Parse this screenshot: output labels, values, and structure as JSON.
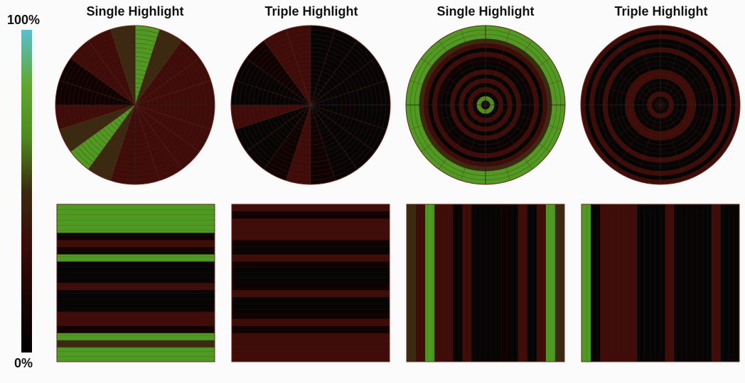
{
  "colorbar": {
    "max_label": "100%",
    "min_label": "0%",
    "stops": [
      "#000000",
      "#1a0503",
      "#3a0c08",
      "#3b2a10",
      "#4e8a1e",
      "#5fa830",
      "#5bbfd0"
    ]
  },
  "panel_titles": [
    "Single Highlight",
    "Triple Highlight",
    "Single Highlight",
    "Triple Highlight"
  ],
  "colors": {
    "black": "#050505",
    "dark": "#0e0302",
    "red": "#3e0d09",
    "brown": "#3b2a12",
    "green": "#4f9a22",
    "line": "#5a1a12"
  },
  "chart_data": [
    {
      "type": "heatmap",
      "title": "Single Highlight",
      "geometry": "polar-sectors",
      "sectors": [
        "green",
        "brown",
        "red",
        "red",
        "red",
        "red",
        "red",
        "red",
        "red",
        "red",
        "red",
        "brown",
        "green",
        "brown",
        "red",
        "dark",
        "dark",
        "red",
        "red",
        "brown"
      ],
      "strips": [
        "green",
        "green",
        "green",
        "green",
        "dark",
        "red",
        "dark",
        "green",
        "black",
        "black",
        "black",
        "red",
        "black",
        "black",
        "black",
        "red",
        "red",
        "dark",
        "green",
        "brown",
        "green",
        "green"
      ]
    },
    {
      "type": "heatmap",
      "title": "Triple Highlight",
      "geometry": "polar-sectors",
      "sectors": [
        "black",
        "black",
        "black",
        "black",
        "black",
        "black",
        "black",
        "black",
        "black",
        "dark",
        "red",
        "dark",
        "black",
        "black",
        "red",
        "black",
        "black",
        "dark",
        "red",
        "red"
      ],
      "strips": [
        "red",
        "dark",
        "red",
        "red",
        "red",
        "dark",
        "black",
        "red",
        "dark",
        "black",
        "black",
        "dark",
        "red",
        "black",
        "black",
        "dark",
        "red",
        "dark",
        "red",
        "red",
        "red",
        "red"
      ]
    },
    {
      "type": "heatmap",
      "title": "Single Highlight",
      "geometry": "polar-rings",
      "rings": [
        "black",
        "green",
        "black",
        "red",
        "black",
        "red",
        "black",
        "red",
        "black",
        "black",
        "dark",
        "red",
        "black",
        "red",
        "brown",
        "green",
        "green",
        "green"
      ],
      "strips": [
        "brown",
        "red",
        "green",
        "red",
        "red",
        "black",
        "red",
        "black",
        "black",
        "black",
        "dark",
        "black",
        "red",
        "black",
        "red",
        "green",
        "brown"
      ]
    },
    {
      "type": "heatmap",
      "title": "Triple Highlight",
      "geometry": "polar-rings",
      "rings": [
        "black",
        "black",
        "red",
        "black",
        "black",
        "black",
        "red",
        "red",
        "black",
        "black",
        "black",
        "black",
        "red",
        "black",
        "black",
        "red",
        "black",
        "red"
      ],
      "strips": [
        "green",
        "black",
        "red",
        "red",
        "red",
        "red",
        "black",
        "black",
        "black",
        "red",
        "black",
        "black",
        "black",
        "black",
        "red",
        "black",
        "black"
      ]
    }
  ]
}
